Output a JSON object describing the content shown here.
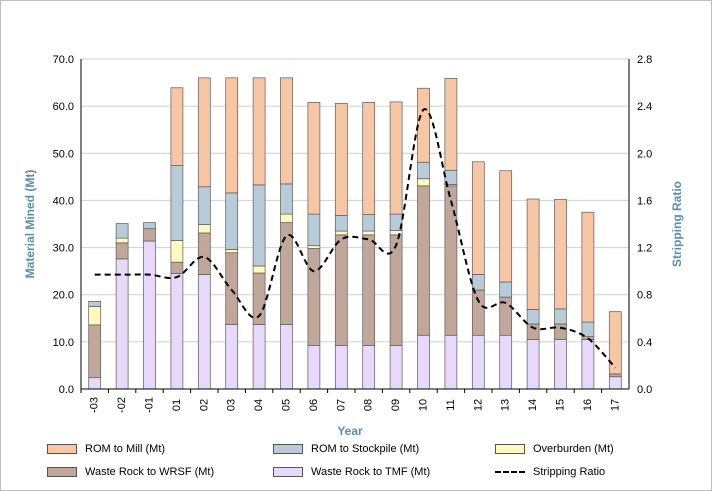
{
  "chart_data": {
    "type": "bar",
    "stacked": true,
    "xlabel": "Year",
    "ylabel": "Material Mined (Mt)",
    "y2label": "Stripping Ratio",
    "ylim": [
      0,
      70
    ],
    "y2lim": [
      0,
      2.8
    ],
    "yticks": [
      "0.0",
      "10.0",
      "20.0",
      "30.0",
      "40.0",
      "50.0",
      "60.0",
      "70.0"
    ],
    "y2ticks": [
      "0.0",
      "0.4",
      "0.8",
      "1.2",
      "1.6",
      "2.0",
      "2.4",
      "2.8"
    ],
    "categories": [
      "-03",
      "-02",
      "-01",
      "01",
      "02",
      "03",
      "04",
      "05",
      "06",
      "07",
      "08",
      "09",
      "10",
      "11",
      "12",
      "13",
      "14",
      "15",
      "16",
      "17"
    ],
    "series": [
      {
        "name": "Waste Rock to TMF (Mt)",
        "color": "#e6d9fa",
        "values": [
          2.4,
          27.6,
          31.4,
          24.5,
          24.3,
          13.7,
          13.7,
          13.7,
          9.2,
          9.2,
          9.2,
          9.2,
          11.4,
          11.4,
          11.4,
          11.4,
          10.5,
          10.5,
          10.5,
          2.6
        ]
      },
      {
        "name": "Waste Rock to WRSF (Mt)",
        "color": "#c1a79a",
        "values": [
          11.2,
          3.4,
          2.6,
          2.4,
          8.8,
          15.2,
          10.9,
          21.6,
          20.6,
          23.5,
          23.5,
          23.5,
          31.7,
          31.7,
          9.6,
          8.1,
          3.3,
          3.3,
          0.6,
          0.6
        ]
      },
      {
        "name": "Overburden (Mt)",
        "color": "#fcfbbd",
        "values": [
          3.9,
          1.0,
          0.0,
          4.6,
          1.8,
          0.7,
          1.5,
          1.8,
          0.6,
          0.8,
          0.8,
          0.9,
          1.5,
          0.3,
          0,
          0,
          0,
          0,
          0,
          0
        ]
      },
      {
        "name": "ROM to Stockpile (Mt)",
        "color": "#b8cbd8",
        "values": [
          1.1,
          3.1,
          1.3,
          15.9,
          8.0,
          12.0,
          17.2,
          6.4,
          6.7,
          3.3,
          3.5,
          3.5,
          3.5,
          3.0,
          3.3,
          3.2,
          3.1,
          3.2,
          3.1,
          0
        ]
      },
      {
        "name": "ROM to Mill (Mt)",
        "color": "#f7c6a5",
        "values": [
          0,
          0,
          0,
          16.5,
          23.1,
          24.4,
          22.7,
          22.5,
          23.7,
          23.8,
          23.8,
          23.8,
          15.7,
          19.5,
          23.9,
          23.6,
          23.4,
          23.2,
          23.3,
          13.2
        ]
      }
    ],
    "line": {
      "name": "Stripping Ratio",
      "axis": "right",
      "color": "#000000",
      "dash": true,
      "values": [
        0.97,
        0.97,
        0.97,
        0.95,
        1.12,
        0.84,
        0.62,
        1.3,
        1.0,
        1.27,
        1.27,
        1.22,
        2.37,
        1.6,
        0.75,
        0.73,
        0.52,
        0.52,
        0.43,
        0.18
      ]
    },
    "legend": [
      "ROM to Mill (Mt)",
      "ROM to Stockpile (Mt)",
      "Overburden (Mt)",
      "Waste Rock to WRSF (Mt)",
      "Waste Rock to TMF (Mt)",
      "Stripping Ratio"
    ]
  }
}
